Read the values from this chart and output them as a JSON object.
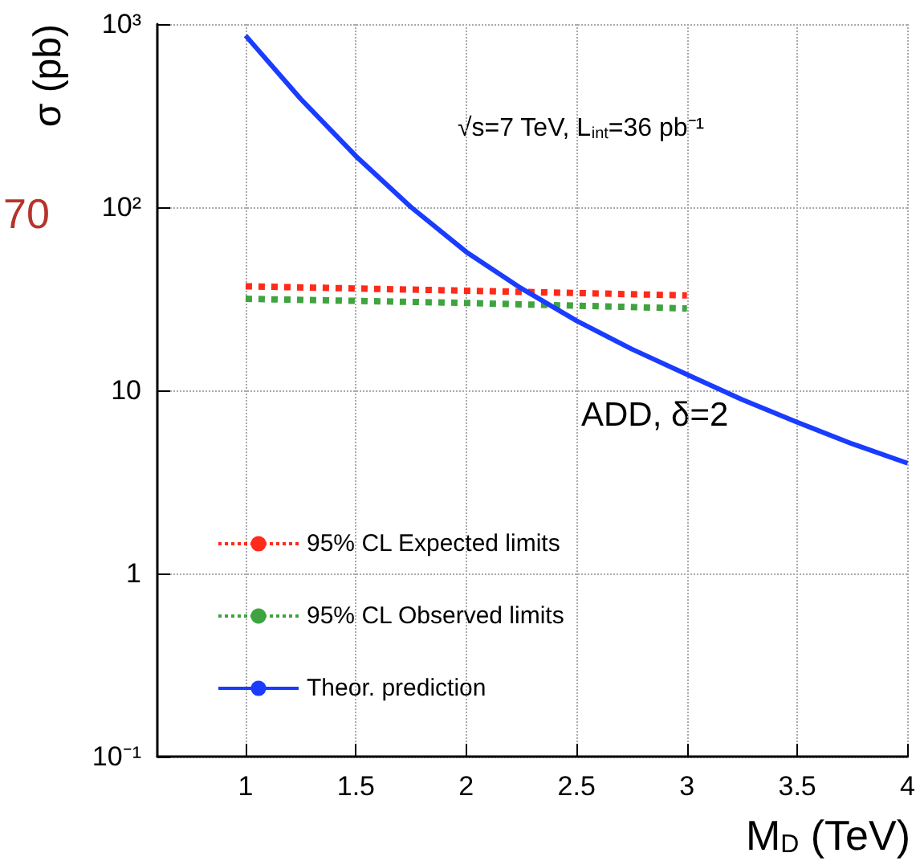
{
  "chart_data": {
    "type": "line",
    "xlabel": "M$_{D}$ (TeV)",
    "ylabel": "σ (pb)",
    "annotations": [
      "√s=7 TeV, L$_{int}$=36 pb⁻¹",
      "ADD, δ=2",
      "70"
    ],
    "series": [
      {
        "name": "95% CL Expected limits",
        "color": "#ff2a1a",
        "line_style": "dotted",
        "x": [
          1,
          2,
          3
        ],
        "values": [
          37,
          35,
          33
        ]
      },
      {
        "name": "95% CL Observed limits",
        "color": "#3fa43f",
        "line_style": "dotted",
        "x": [
          1,
          2,
          3
        ],
        "values": [
          31.6,
          30,
          28
        ]
      },
      {
        "name": "Theor. prediction",
        "color": "#1a3cff",
        "line_style": "solid",
        "x": [
          1,
          1.25,
          1.5,
          1.75,
          2,
          2.25,
          2.5,
          2.75,
          3,
          3.25,
          3.5,
          3.75,
          4
        ],
        "values": [
          865,
          390,
          190,
          100,
          57,
          36,
          24,
          16.8,
          12.2,
          8.9,
          6.7,
          5.1,
          4.0
        ]
      }
    ],
    "log": "y",
    "xlim": [
      0.6,
      4
    ],
    "xticks": [
      1,
      1.5,
      2,
      2.5,
      3,
      3.5,
      4
    ],
    "ylim": [
      0.1,
      1000
    ],
    "yticks": [
      {
        "value": 0.1,
        "label": "10⁻¹"
      },
      1,
      10,
      {
        "value": 100,
        "label": "10²"
      },
      {
        "value": 1000,
        "label": "10³"
      }
    ],
    "grid": true,
    "legend": "bottom left",
    "marker": "none"
  }
}
